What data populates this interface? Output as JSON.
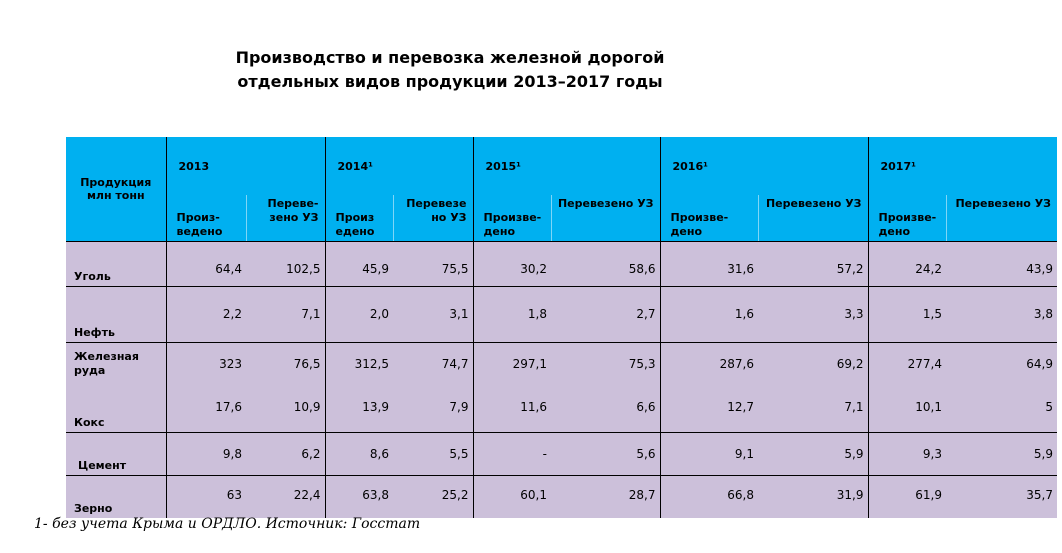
{
  "title": {
    "line1": "Производство и перевозка железной дорогой",
    "line2": "отдельных видов продукции 2013–2017 годы"
  },
  "table": {
    "product_header": "Продукция млн тонн",
    "years": [
      "2013",
      "2014¹",
      "2015¹",
      "2016¹",
      "2017¹"
    ],
    "subheaders": [
      {
        "produced": "Произ-ведено",
        "transported": "Переве-зено УЗ"
      },
      {
        "produced": "Произ едено",
        "transported": "Перевезе но УЗ"
      },
      {
        "produced": "Произве-дено",
        "transported": "Перевезено УЗ"
      },
      {
        "produced": "Произве-дено",
        "transported": "Перевезено УЗ"
      },
      {
        "produced": "Произве-дено",
        "transported": "Перевезено УЗ"
      }
    ],
    "rows": [
      {
        "name": "Уголь",
        "values": [
          "64,4",
          "102,5",
          "45,9",
          "75,5",
          "30,2",
          "58,6",
          "31,6",
          "57,2",
          "24,2",
          "43,9"
        ]
      },
      {
        "name": "Нефть",
        "values": [
          "2,2",
          "7,1",
          "2,0",
          "3,1",
          "1,8",
          "2,7",
          "1,6",
          "3,3",
          "1,5",
          "3,8"
        ]
      },
      {
        "name": "Железная руда",
        "values": [
          "323",
          "76,5",
          "312,5",
          "74,7",
          "297,1",
          "75,3",
          "287,6",
          "69,2",
          "277,4",
          "64,9"
        ]
      },
      {
        "name": "Кокс",
        "values": [
          "17,6",
          "10,9",
          "13,9",
          "7,9",
          "11,6",
          "6,6",
          "12,7",
          "7,1",
          "10,1",
          "5"
        ]
      },
      {
        "name": "Цемент",
        "values": [
          "9,8",
          "6,2",
          "8,6",
          "5,5",
          "-",
          "5,6",
          "9,1",
          "5,9",
          "9,3",
          "5,9"
        ]
      },
      {
        "name": "Зерно",
        "values": [
          "63",
          "22,4",
          "63,8",
          "25,2",
          "60,1",
          "28,7",
          "66,8",
          "31,9",
          "61,9",
          "35,7"
        ]
      }
    ]
  },
  "footnote": "1-   без учета Крыма и ОРДЛО. Источник: Госстат",
  "colors": {
    "header_bg": "#00b0f0",
    "body_bg": "#ccc0da"
  }
}
